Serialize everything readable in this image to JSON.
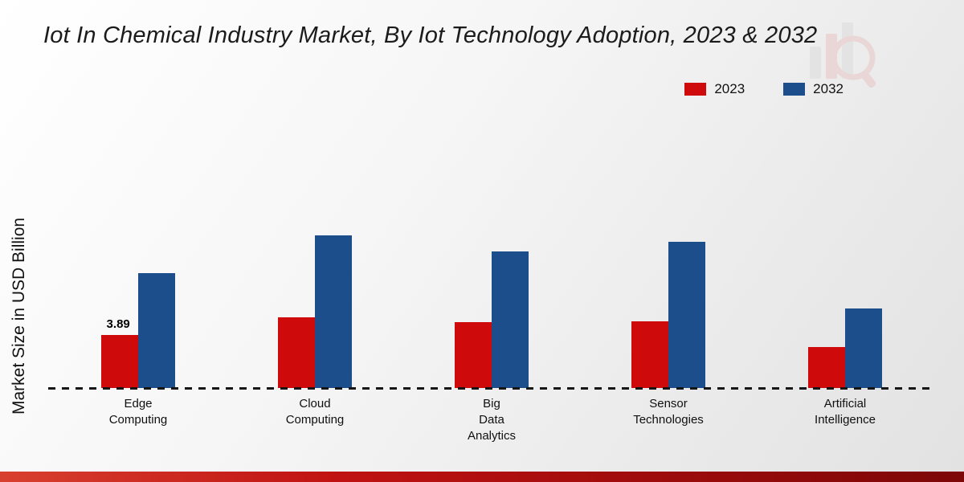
{
  "title": "Iot In Chemical Industry Market, By Iot Technology Adoption, 2023 & 2032",
  "ylabel": "Market Size in USD Billion",
  "legend": {
    "items": [
      "2023",
      "2032"
    ]
  },
  "chart_data": {
    "type": "bar",
    "title": "Iot In Chemical Industry Market, By Iot Technology Adoption, 2023 & 2032",
    "xlabel": "",
    "ylabel": "Market Size in USD Billion",
    "categories": [
      "Edge\nComputing",
      "Cloud\nComputing",
      "Big\nData\nAnalytics",
      "Sensor\nTechnologies",
      "Artificial\nIntelligence"
    ],
    "series": [
      {
        "name": "2023",
        "color": "#cf0a0a",
        "values": [
          3.89,
          5.2,
          4.8,
          4.9,
          3.0
        ]
      },
      {
        "name": "2032",
        "color": "#1c4e8c",
        "values": [
          8.4,
          11.2,
          10.0,
          10.7,
          5.8
        ]
      }
    ],
    "data_labels": [
      {
        "series": "2023",
        "category": "Edge Computing",
        "value": "3.89"
      }
    ],
    "ylim": [
      0,
      19
    ],
    "grid": false,
    "legend_position": "top-right",
    "baseline_style": "dashed"
  },
  "colors": {
    "accent_red": "#cf0a0a",
    "accent_blue": "#1c4e8c",
    "footer_band": "#9c0b0b",
    "background": "#ededed"
  }
}
